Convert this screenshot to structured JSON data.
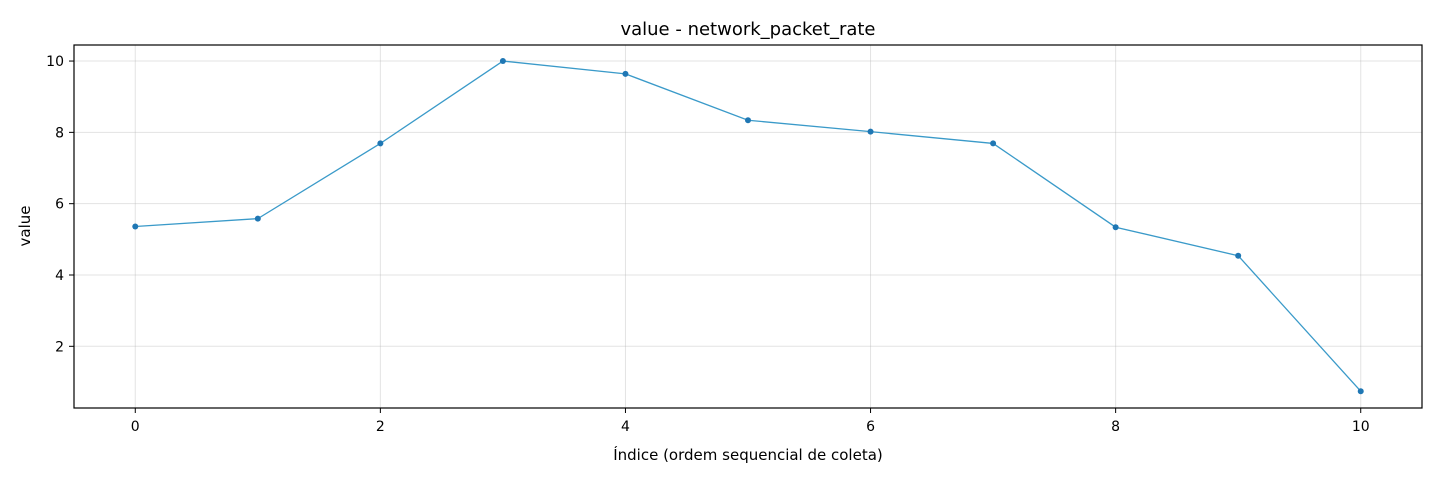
{
  "chart_data": {
    "type": "line",
    "title": "value - network_packet_rate",
    "xlabel": "Índice (ordem sequencial de coleta)",
    "ylabel": "value",
    "x": [
      0,
      1,
      2,
      3,
      4,
      5,
      6,
      7,
      8,
      9,
      10
    ],
    "series": [
      {
        "values": [
          5.36,
          5.58,
          7.69,
          10.0,
          9.64,
          8.34,
          8.02,
          7.69,
          5.34,
          4.54,
          0.74
        ],
        "color": "#3a9ac9",
        "marker_color": "#1f77b4"
      }
    ],
    "xlim": [
      -0.5,
      10.5
    ],
    "ylim": [
      0.27,
      10.45
    ],
    "xticks": [
      0,
      2,
      4,
      6,
      8,
      10
    ],
    "yticks": [
      2,
      4,
      6,
      8,
      10
    ],
    "xtick_labels": [
      "0",
      "2",
      "4",
      "6",
      "8",
      "10"
    ],
    "ytick_labels": [
      "2",
      "4",
      "6",
      "8",
      "10"
    ],
    "grid": true,
    "legend": "none"
  }
}
